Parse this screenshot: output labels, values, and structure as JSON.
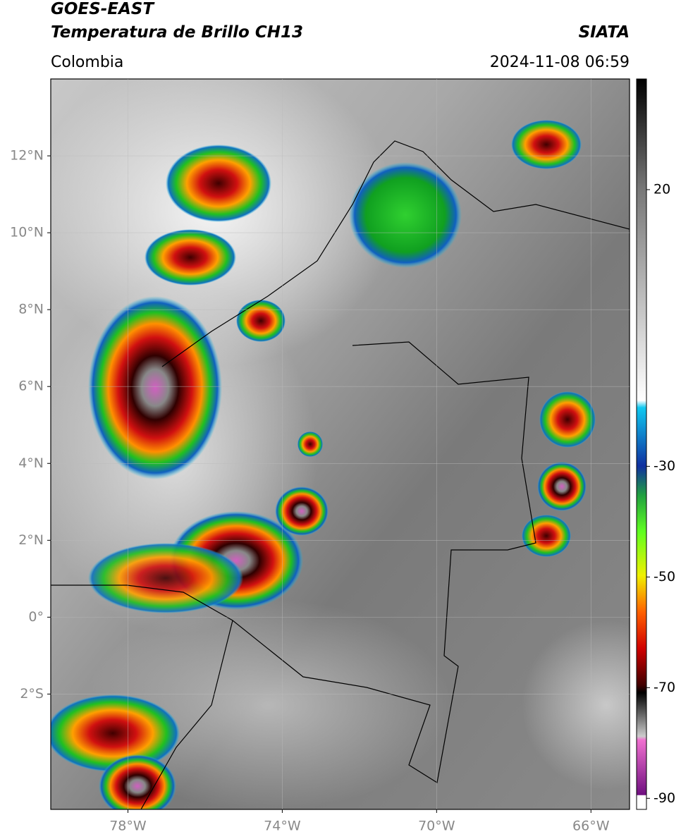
{
  "chart_data": {
    "type": "map",
    "title": "GOES-EAST",
    "subtitle": "Temperatura de Brillo CH13",
    "source": "SIATA",
    "region": "Colombia",
    "datetime": "2024-11-08 06:59",
    "xlim": [
      -80,
      -65
    ],
    "ylim": [
      -5,
      14
    ],
    "xticks": [
      {
        "value": -78,
        "label": "78°W"
      },
      {
        "value": -74,
        "label": "74°W"
      },
      {
        "value": -70,
        "label": "70°W"
      },
      {
        "value": -66,
        "label": "66°W"
      }
    ],
    "yticks": [
      {
        "value": 12,
        "label": "12°N"
      },
      {
        "value": 10,
        "label": "10°N"
      },
      {
        "value": 8,
        "label": "8°N"
      },
      {
        "value": 6,
        "label": "6°N"
      },
      {
        "value": 4,
        "label": "4°N"
      },
      {
        "value": 2,
        "label": "2°N"
      },
      {
        "value": 0,
        "label": "0°"
      },
      {
        "value": -2,
        "label": "2°S"
      }
    ],
    "grid": true,
    "colorbar": {
      "lim": [
        -92,
        40
      ],
      "ticks": [
        20,
        -30,
        -50,
        -70,
        -90
      ]
    }
  }
}
